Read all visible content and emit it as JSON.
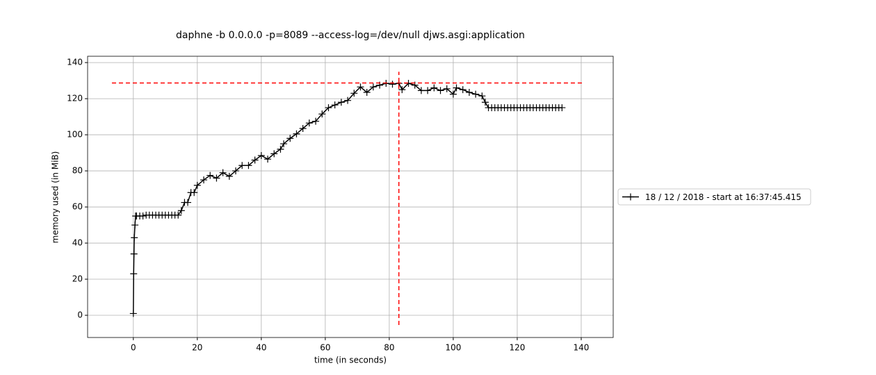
{
  "chart_data": {
    "type": "line",
    "title": "daphne -b 0.0.0.0 -p=8089 --access-log=/dev/null djws.asgi:application",
    "xlabel": "time (in seconds)",
    "ylabel": "memory used (in MiB)",
    "series": [
      {
        "name": "18 / 12 / 2018 - start at 16:37:45.415",
        "color": "#000000",
        "x": [
          0,
          0.1,
          0.2,
          0.3,
          0.5,
          0.7,
          1,
          2,
          3,
          4,
          5,
          6,
          7,
          8,
          9,
          10,
          11,
          12,
          13,
          14,
          15,
          16,
          17,
          18,
          19,
          20,
          22,
          24,
          26,
          28,
          30,
          32,
          34,
          36,
          38,
          40,
          42,
          44,
          46,
          47,
          49,
          51,
          53,
          55,
          57,
          59,
          61,
          63,
          65,
          67,
          69,
          71,
          73,
          75,
          77,
          79,
          81,
          83,
          84,
          86,
          88,
          90,
          92,
          94,
          96,
          98,
          100,
          101,
          103,
          105,
          107,
          109,
          110,
          111,
          112,
          113,
          114,
          115,
          116,
          117,
          118,
          119,
          120,
          121,
          122,
          123,
          124,
          125,
          126,
          127,
          128,
          129,
          130,
          131,
          132,
          133,
          134
        ],
        "values": [
          1,
          23,
          34,
          43,
          50,
          55,
          55,
          55,
          55,
          55.5,
          55.5,
          55.5,
          55.5,
          55.5,
          55.5,
          55.5,
          55.5,
          55.5,
          55.5,
          55.5,
          58,
          62.5,
          62.5,
          68,
          68,
          72,
          75,
          77.5,
          76,
          79,
          77,
          80,
          83,
          83,
          86,
          88.5,
          86.5,
          89.5,
          92,
          95,
          98,
          100.5,
          103.5,
          106.5,
          107.5,
          111.5,
          115,
          116.5,
          118,
          119,
          123,
          126.5,
          123.5,
          126.5,
          127.5,
          128.5,
          128,
          128.5,
          125,
          128.5,
          127.5,
          124.5,
          124.5,
          126,
          124.5,
          125.5,
          122.5,
          126,
          125,
          123.5,
          122.5,
          121.5,
          118,
          115,
          115,
          115,
          115,
          115,
          115,
          115,
          115,
          115,
          115,
          115,
          115,
          115,
          115,
          115,
          115,
          115,
          115,
          115,
          115,
          115,
          115,
          115,
          115
        ]
      }
    ],
    "peak": {
      "x": 83,
      "y": 128.7,
      "color": "#ff0000"
    },
    "xlim": [
      -14.3,
      150
    ],
    "ylim": [
      -12.3,
      143.5
    ],
    "xticks": [
      0,
      20,
      40,
      60,
      80,
      100,
      120,
      140
    ],
    "yticks": [
      0,
      20,
      40,
      60,
      80,
      100,
      120,
      140
    ],
    "grid": true,
    "legend": "right"
  }
}
